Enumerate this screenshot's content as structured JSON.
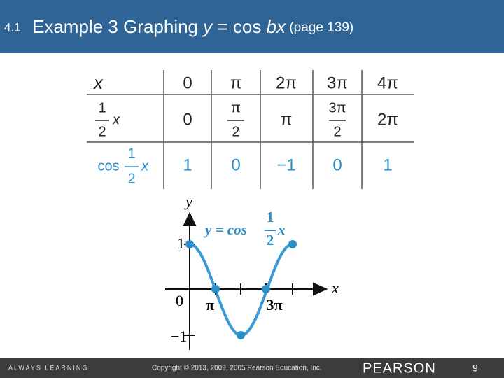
{
  "header": {
    "section": "4.1",
    "title": [
      "Example 3 Graphing ",
      "y",
      " = cos ",
      "bx",
      " (page 139)"
    ]
  },
  "table": {
    "rows": [
      {
        "head": {
          "label": "x"
        },
        "cells": [
          {
            "text": "0"
          },
          {
            "text": "π"
          },
          {
            "text": "2π"
          },
          {
            "text": "3π"
          },
          {
            "text": "4π"
          }
        ]
      },
      {
        "head": {
          "num": "1",
          "den": "2",
          "after": "x"
        },
        "cells": [
          {
            "text": "0"
          },
          {
            "num": "π",
            "den": "2"
          },
          {
            "text": "π"
          },
          {
            "num": "3π",
            "den": "2"
          },
          {
            "text": "2π"
          }
        ]
      },
      {
        "head": {
          "before": "cos",
          "num": "1",
          "den": "2",
          "after": "x"
        },
        "cells": [
          {
            "text": "1"
          },
          {
            "text": "0"
          },
          {
            "text": "−1"
          },
          {
            "text": "0"
          },
          {
            "text": "1"
          }
        ]
      }
    ]
  },
  "graph": {
    "y_axis": "y",
    "x_axis": "x",
    "y_ticks": [
      "1",
      "0",
      "−1"
    ],
    "x_ticks": [
      "π",
      "3π"
    ],
    "curve_label": {
      "before": "y = cos",
      "num": "1",
      "den": "2",
      "after": "x"
    }
  },
  "footer": {
    "tagline": "ALWAYS LEARNING",
    "copyright": "Copyright © 2013, 2009, 2005 Pearson Education, Inc.",
    "brand": "PEARSON",
    "page": "9"
  }
}
